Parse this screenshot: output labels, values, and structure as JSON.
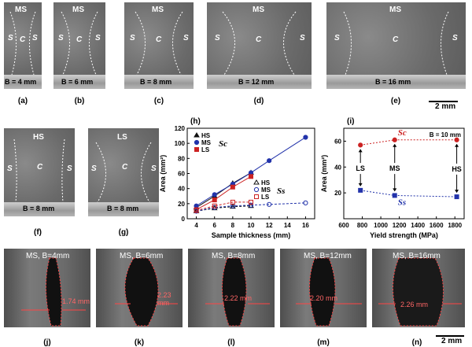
{
  "top_panels": [
    {
      "id": "a",
      "top": "MS",
      "center": "C",
      "side": "S",
      "bottom": "B = 4 mm",
      "label": "(a)"
    },
    {
      "id": "b",
      "top": "MS",
      "center": "C",
      "side": "S",
      "bottom": "B = 6 mm",
      "label": "(b)"
    },
    {
      "id": "c",
      "top": "MS",
      "center": "C",
      "side": "S",
      "bottom": "B = 8 mm",
      "label": "(c)"
    },
    {
      "id": "d",
      "top": "MS",
      "center": "C",
      "side": "S",
      "bottom": "B = 12 mm",
      "label": "(d)"
    },
    {
      "id": "e",
      "top": "MS",
      "center": "C",
      "side": "S",
      "bottom": "B = 16 mm",
      "label": "(e)"
    }
  ],
  "scale_top": "2 mm",
  "mid_panels": [
    {
      "id": "f",
      "top": "HS",
      "center": "C",
      "side": "S",
      "bottom": "B = 8 mm",
      "label": "(f)"
    },
    {
      "id": "g",
      "top": "LS",
      "center": "C",
      "side": "S",
      "bottom": "B = 8 mm",
      "label": "(g)"
    }
  ],
  "chart_data": [
    {
      "type": "line",
      "panel": "(h)",
      "ylabel": "Area (mm²)",
      "xlabel": "Sample thickness (mm)",
      "xlim": [
        3,
        17
      ],
      "ylim": [
        0,
        120
      ],
      "xticks": [
        4,
        6,
        8,
        10,
        12,
        14,
        16
      ],
      "yticks": [
        0,
        20,
        40,
        60,
        80,
        100,
        120
      ],
      "legend_upper": {
        "items": [
          "HS",
          "MS",
          "LS"
        ],
        "symbol": "Sc"
      },
      "legend_lower": {
        "items": [
          "HS",
          "MS",
          "LS"
        ],
        "symbol": "Ss"
      },
      "series": [
        {
          "name": "HS",
          "kind": "Sc",
          "color": "#111111",
          "x": [
            4,
            6,
            8,
            10
          ],
          "y": [
            15,
            30,
            47,
            61
          ]
        },
        {
          "name": "MS",
          "kind": "Sc",
          "color": "#2233aa",
          "x": [
            4,
            6,
            8,
            10,
            12,
            16
          ],
          "y": [
            17,
            32,
            46,
            61,
            77,
            108
          ]
        },
        {
          "name": "LS",
          "kind": "Sc",
          "color": "#cc2222",
          "x": [
            4,
            6,
            8,
            10
          ],
          "y": [
            12,
            25,
            42,
            56
          ]
        },
        {
          "name": "HS",
          "kind": "Ss",
          "color": "#111111",
          "x": [
            4,
            6,
            8,
            10
          ],
          "y": [
            10,
            14,
            16,
            17
          ]
        },
        {
          "name": "MS",
          "kind": "Ss",
          "color": "#2233aa",
          "x": [
            4,
            6,
            8,
            10,
            12,
            16
          ],
          "y": [
            10,
            15,
            17,
            18,
            19,
            21
          ]
        },
        {
          "name": "LS",
          "kind": "Ss",
          "color": "#cc2222",
          "x": [
            4,
            6,
            8,
            10
          ],
          "y": [
            11,
            17,
            22,
            22
          ]
        }
      ]
    },
    {
      "type": "scatter",
      "panel": "(i)",
      "note": "B = 10 mm",
      "ylabel": "Area (mm²)",
      "xlabel": "Yield strength (MPa)",
      "xlim": [
        600,
        1900
      ],
      "ylim": [
        0,
        70
      ],
      "xticks": [
        600,
        800,
        1000,
        1200,
        1400,
        1600,
        1800
      ],
      "yticks": [
        20,
        40,
        60
      ],
      "annotations": [
        "LS",
        "MS",
        "HS"
      ],
      "series": [
        {
          "name": "Sc",
          "color": "#cc2222",
          "x": [
            780,
            1150,
            1820
          ],
          "y": [
            57,
            61,
            61
          ]
        },
        {
          "name": "Ss",
          "color": "#2233aa",
          "x": [
            780,
            1150,
            1820
          ],
          "y": [
            22,
            18,
            17
          ]
        }
      ]
    }
  ],
  "bottom_panels": [
    {
      "id": "j",
      "title": "MS, B=4mm",
      "meas": "1.74 mm",
      "label": "(j)"
    },
    {
      "id": "k",
      "title": "MS, B=6mm",
      "meas": "2.23 mm",
      "label": "(k)"
    },
    {
      "id": "l",
      "title": "MS, B=8mm",
      "meas": "2.22 mm",
      "label": "(l)"
    },
    {
      "id": "m",
      "title": "MS, B=12mm",
      "meas": "2.20 mm",
      "label": "(m)"
    },
    {
      "id": "n",
      "title": "MS, B=16mm",
      "meas": "2.26 mm",
      "label": "(n)"
    }
  ],
  "scale_bottom": "2 mm"
}
